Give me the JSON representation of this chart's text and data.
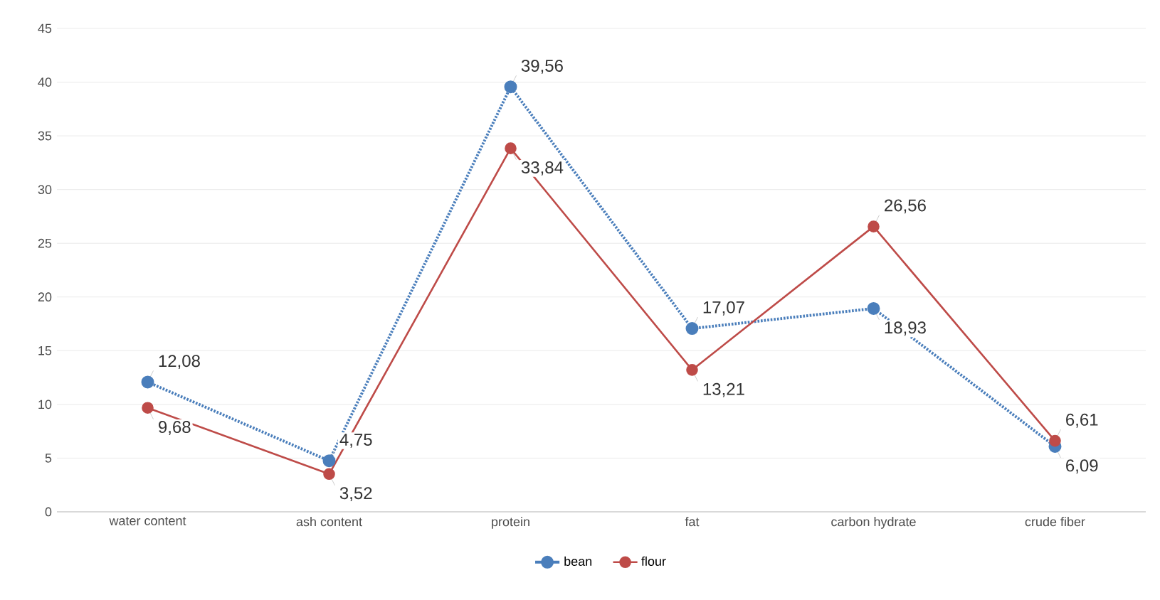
{
  "chart_data": {
    "type": "line",
    "categories": [
      "water content",
      "ash content",
      "protein",
      "fat",
      "carbon hydrate",
      "crude fiber"
    ],
    "series": [
      {
        "name": "bean",
        "color": "#4a7ebb",
        "line_style": "dotted",
        "values": [
          12.08,
          4.75,
          39.56,
          17.07,
          18.93,
          6.09
        ],
        "value_labels": [
          "12,08",
          "4,75",
          "39,56",
          "17,07",
          "18,93",
          "6,09"
        ]
      },
      {
        "name": "flour",
        "color": "#be4b48",
        "line_style": "solid",
        "values": [
          9.68,
          3.52,
          33.84,
          13.21,
          26.56,
          6.61
        ],
        "value_labels": [
          "9,68",
          "3,52",
          "33,84",
          "13,21",
          "26,56",
          "6,61"
        ]
      }
    ],
    "ylim": [
      0,
      45
    ],
    "yticks": [
      0,
      5,
      10,
      15,
      20,
      25,
      30,
      35,
      40,
      45
    ],
    "grid": "y",
    "legend": "bottom",
    "marker": "circle"
  }
}
